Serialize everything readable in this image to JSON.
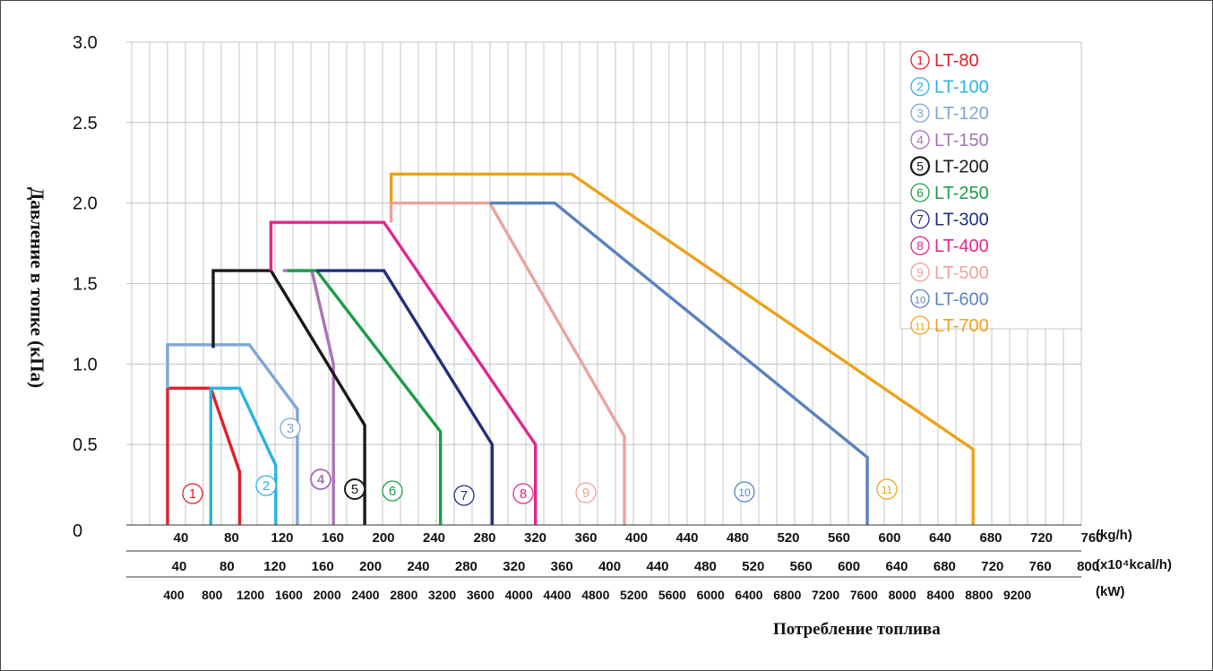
{
  "chart_data": {
    "type": "line",
    "ylabel": "Давление в топке (кПа)",
    "xlabel": "Потребление топлива",
    "ylim": [
      0,
      3.0
    ],
    "xlim": [
      0,
      760
    ],
    "yticks": [
      "0",
      "0.5",
      "1.0",
      "1.5",
      "2.0",
      "2.5",
      "3.0"
    ],
    "x_axes": [
      {
        "unit": "(kg/h)",
        "ticks": [
          "40",
          "80",
          "120",
          "160",
          "200",
          "240",
          "280",
          "320",
          "360",
          "400",
          "440",
          "480",
          "520",
          "560",
          "600",
          "640",
          "680",
          "720",
          "760"
        ]
      },
      {
        "unit": "(x10⁴kcal/h)",
        "ticks": [
          "40",
          "80",
          "120",
          "160",
          "200",
          "240",
          "280",
          "320",
          "360",
          "400",
          "440",
          "480",
          "520",
          "560",
          "600",
          "640",
          "680",
          "720",
          "760",
          "800"
        ]
      },
      {
        "unit": "(kW)",
        "ticks": [
          "400",
          "800",
          "1200",
          "1600",
          "2000",
          "2400",
          "2800",
          "3200",
          "3600",
          "4000",
          "4400",
          "4800",
          "5200",
          "5600",
          "6000",
          "6400",
          "6800",
          "7200",
          "7600",
          "8000",
          "8400",
          "8800",
          "9200"
        ]
      }
    ],
    "grid": true,
    "legend_position": "top-right",
    "series": [
      {
        "name": "LT-80",
        "marker": "1",
        "color": "#e0202a",
        "points": [
          [
            0,
            0
          ],
          [
            0,
            0.85
          ],
          [
            36,
            0.85
          ],
          [
            60,
            0.33
          ],
          [
            60,
            0
          ]
        ]
      },
      {
        "name": "LT-100",
        "marker": "2",
        "color": "#29b2e6",
        "points": [
          [
            36,
            0
          ],
          [
            36,
            0.85
          ],
          [
            60,
            0.85
          ],
          [
            90,
            0.37
          ],
          [
            90,
            0
          ]
        ]
      },
      {
        "name": "LT-120",
        "marker": "3",
        "color": "#7ea6d8",
        "points": [
          [
            0,
            0.85
          ],
          [
            0,
            1.12
          ],
          [
            68,
            1.12
          ],
          [
            108,
            0.72
          ],
          [
            108,
            0
          ]
        ]
      },
      {
        "name": "LT-150",
        "marker": "4",
        "color": "#a874b6",
        "points": [
          [
            96,
            1.58
          ],
          [
            120,
            1.58
          ],
          [
            138,
            1.0
          ],
          [
            138,
            0
          ]
        ]
      },
      {
        "name": "LT-200",
        "marker": "5",
        "color": "#1a1a1a",
        "points": [
          [
            38,
            1.1
          ],
          [
            38,
            1.58
          ],
          [
            86,
            1.58
          ],
          [
            164,
            0.62
          ],
          [
            164,
            0
          ]
        ]
      },
      {
        "name": "LT-250",
        "marker": "6",
        "color": "#1b9c49",
        "points": [
          [
            100,
            1.58
          ],
          [
            124,
            1.58
          ],
          [
            227,
            0.58
          ],
          [
            227,
            0
          ]
        ]
      },
      {
        "name": "LT-300",
        "marker": "7",
        "color": "#20307c",
        "points": [
          [
            124,
            1.58
          ],
          [
            180,
            1.58
          ],
          [
            270,
            0.5
          ],
          [
            270,
            0
          ]
        ]
      },
      {
        "name": "LT-400",
        "marker": "8",
        "color": "#e0288e",
        "points": [
          [
            86,
            1.58
          ],
          [
            86,
            1.88
          ],
          [
            180,
            1.88
          ],
          [
            306,
            0.5
          ],
          [
            306,
            0
          ]
        ]
      },
      {
        "name": "LT-500",
        "marker": "9",
        "color": "#eba39a",
        "points": [
          [
            186,
            1.88
          ],
          [
            186,
            2.0
          ],
          [
            268,
            2.0
          ],
          [
            380,
            0.55
          ],
          [
            380,
            0
          ]
        ]
      },
      {
        "name": "LT-600",
        "marker": "10",
        "color": "#5a82bc",
        "points": [
          [
            268,
            2.0
          ],
          [
            322,
            2.0
          ],
          [
            582,
            0.42
          ],
          [
            582,
            0
          ]
        ]
      },
      {
        "name": "LT-700",
        "marker": "11",
        "color": "#eda21b",
        "points": [
          [
            186,
            2.0
          ],
          [
            186,
            2.18
          ],
          [
            336,
            2.18
          ],
          [
            670,
            0.47
          ],
          [
            670,
            0
          ]
        ]
      }
    ]
  }
}
